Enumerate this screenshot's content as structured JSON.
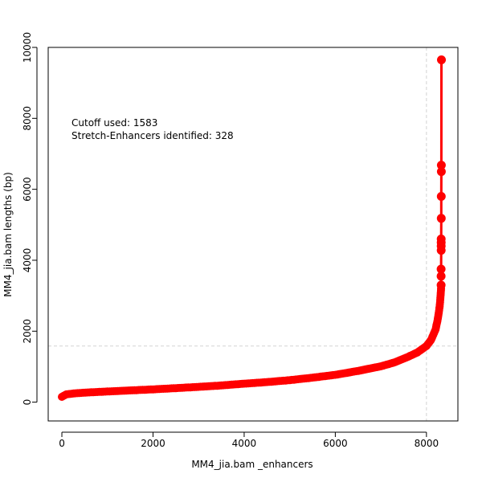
{
  "chart_data": {
    "type": "scatter",
    "title": "",
    "xlabel": "MM4_jia.bam _enhancers",
    "ylabel": "MM4_jia.bam  lengths (bp)",
    "xlim": [
      -300,
      8690
    ],
    "ylim": [
      -530,
      10000
    ],
    "x_ticks": [
      0,
      2000,
      4000,
      6000,
      8000
    ],
    "x_tick_labels": [
      "0",
      "2000",
      "4000",
      "6000",
      "8000"
    ],
    "y_ticks": [
      0,
      2000,
      4000,
      6000,
      8000,
      10000
    ],
    "y_tick_labels": [
      "0",
      "2000",
      "4000",
      "6000",
      "8000",
      "10000"
    ],
    "annotations": {
      "cutoff_line": "Cutoff used:  1583",
      "enhancers_line": "Stretch-Enhancers identified:  328"
    },
    "cutoff": 1583,
    "cutoff_x": 8000,
    "total_enhancers": 8328,
    "grid": false,
    "legend": "none",
    "colors": {
      "points": "#ff0000",
      "cutoff_lines": "#d3d3d3",
      "axis": "#000000"
    },
    "series": [
      {
        "curve": [
          [
            0,
            150
          ],
          [
            100,
            220
          ],
          [
            300,
            250
          ],
          [
            600,
            275
          ],
          [
            1000,
            300
          ],
          [
            1500,
            330
          ],
          [
            2000,
            360
          ],
          [
            2500,
            395
          ],
          [
            3000,
            430
          ],
          [
            3500,
            470
          ],
          [
            4000,
            520
          ],
          [
            4500,
            565
          ],
          [
            5000,
            620
          ],
          [
            5500,
            690
          ],
          [
            6000,
            770
          ],
          [
            6500,
            880
          ],
          [
            7000,
            1010
          ],
          [
            7300,
            1120
          ],
          [
            7600,
            1280
          ],
          [
            7800,
            1400
          ],
          [
            8000,
            1583
          ],
          [
            8100,
            1750
          ],
          [
            8200,
            2050
          ],
          [
            8250,
            2350
          ],
          [
            8290,
            2700
          ],
          [
            8310,
            3000
          ],
          [
            8320,
            3200
          ]
        ],
        "outliers": [
          [
            8321,
            3300
          ],
          [
            8322,
            3550
          ],
          [
            8322,
            3750
          ],
          [
            8323,
            4280
          ],
          [
            8323,
            4400
          ],
          [
            8324,
            4500
          ],
          [
            8324,
            4600
          ],
          [
            8325,
            5180
          ],
          [
            8325,
            5800
          ],
          [
            8326,
            6500
          ],
          [
            8327,
            6680
          ],
          [
            8328,
            9650
          ]
        ]
      }
    ]
  }
}
